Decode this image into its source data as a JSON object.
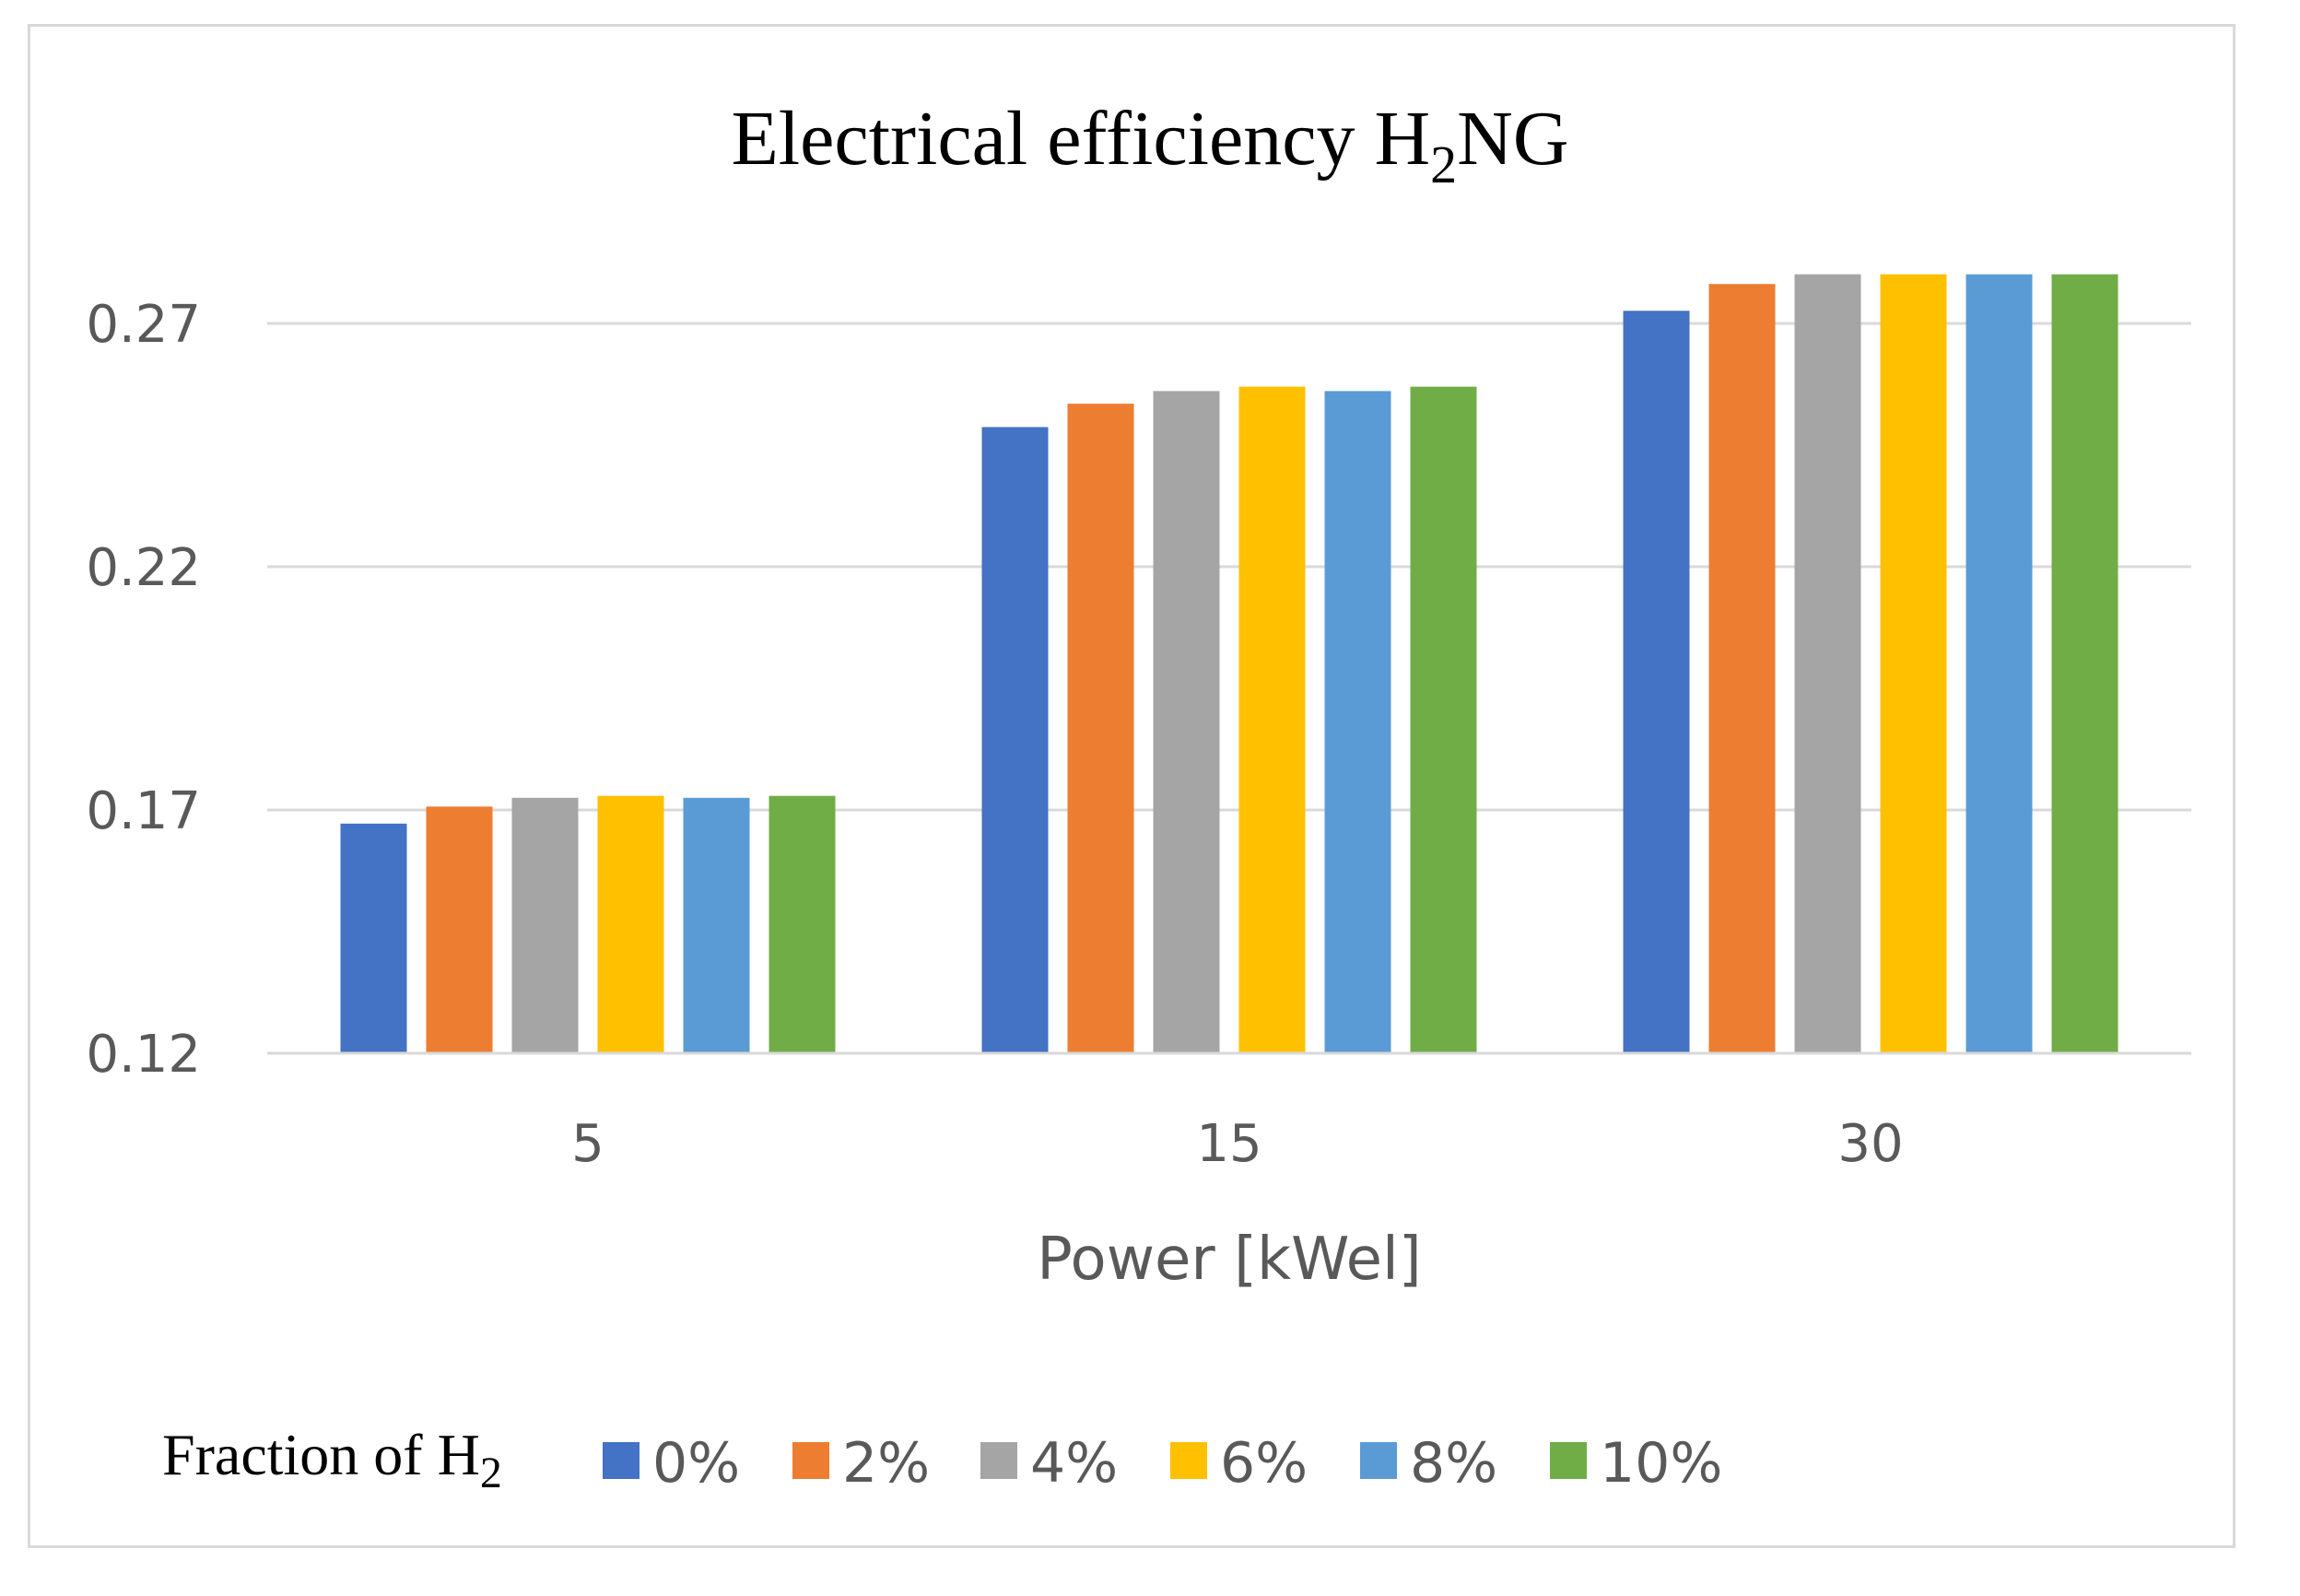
{
  "chart_data": {
    "type": "bar",
    "title": "Electrical efficiency H",
    "title_subscript": "2",
    "title_suffix": "NG",
    "xlabel": "Power [kWel]",
    "ylabel": "",
    "categories": [
      "5",
      "15",
      "30"
    ],
    "ylim": [
      0.12,
      0.28
    ],
    "yticks": [
      "0.12",
      "0.17",
      "0.22",
      "0.27"
    ],
    "grid": true,
    "legend_title": "Fraction of H",
    "legend_title_subscript": "2",
    "legend_position": "bottom",
    "series": [
      {
        "name": "0%",
        "color": "#4472c4",
        "values": [
          0.1672,
          0.2487,
          0.2726
        ]
      },
      {
        "name": "2%",
        "color": "#ed7d31",
        "values": [
          0.1707,
          0.2535,
          0.2781
        ]
      },
      {
        "name": "4%",
        "color": "#a5a5a5",
        "values": [
          0.1725,
          0.2561,
          0.2801
        ]
      },
      {
        "name": "6%",
        "color": "#ffc000",
        "values": [
          0.1729,
          0.257,
          0.2801
        ]
      },
      {
        "name": "8%",
        "color": "#5b9bd5",
        "values": [
          0.1725,
          0.2561,
          0.2801
        ]
      },
      {
        "name": "10%",
        "color": "#70ad47",
        "values": [
          0.1729,
          0.257,
          0.2801
        ]
      }
    ]
  }
}
